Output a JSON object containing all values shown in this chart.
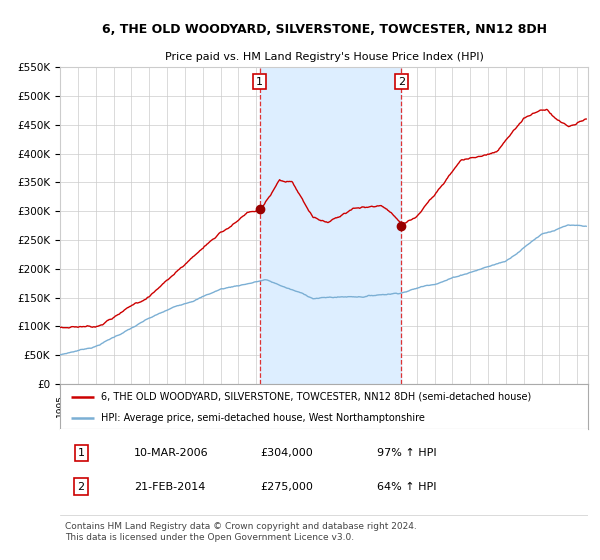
{
  "title": "6, THE OLD WOODYARD, SILVERSTONE, TOWCESTER, NN12 8DH",
  "subtitle": "Price paid vs. HM Land Registry's House Price Index (HPI)",
  "ylim": [
    0,
    550000
  ],
  "yticks": [
    0,
    50000,
    100000,
    150000,
    200000,
    250000,
    300000,
    350000,
    400000,
    450000,
    500000,
    550000
  ],
  "ytick_labels": [
    "£0",
    "£50K",
    "£100K",
    "£150K",
    "£200K",
    "£250K",
    "£300K",
    "£350K",
    "£400K",
    "£450K",
    "£500K",
    "£550K"
  ],
  "red_line_color": "#cc0000",
  "blue_line_color": "#7bafd4",
  "shade_color": "#ddeeff",
  "dashed_color": "#dd3333",
  "marker_color": "#990000",
  "grid_color": "#cccccc",
  "background_color": "#ffffff",
  "legend_border_color": "#aaaaaa",
  "marker1_x": 2006.19,
  "marker1_y": 304000,
  "marker2_x": 2014.13,
  "marker2_y": 275000,
  "shade_x1": 2006.19,
  "shade_x2": 2014.13,
  "label1_text": "1",
  "label2_text": "2",
  "footnote": "Contains HM Land Registry data © Crown copyright and database right 2024.\nThis data is licensed under the Open Government Licence v3.0.",
  "legend_line1": "6, THE OLD WOODYARD, SILVERSTONE, TOWCESTER, NN12 8DH (semi-detached house)",
  "legend_line2": "HPI: Average price, semi-detached house, West Northamptonshire",
  "table_row1": [
    "1",
    "10-MAR-2006",
    "£304,000",
    "97% ↑ HPI"
  ],
  "table_row2": [
    "2",
    "21-FEB-2014",
    "£275,000",
    "64% ↑ HPI"
  ],
  "xlim_left": 1995,
  "xlim_right": 2024.6
}
